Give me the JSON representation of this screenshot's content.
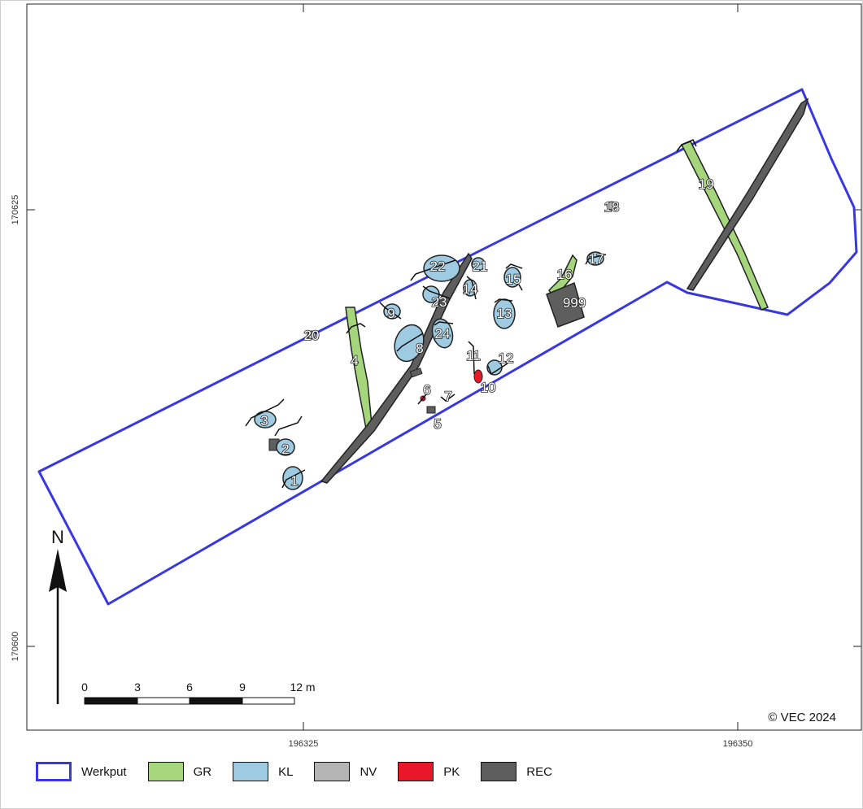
{
  "axes": {
    "x_ticks": [
      "196325",
      "196350"
    ],
    "y_ticks": [
      "170625",
      "170600"
    ]
  },
  "north_label": "N",
  "scale_bar": {
    "labels": [
      "0",
      "3",
      "6",
      "9",
      "12 m"
    ]
  },
  "copyright": "© VEC 2024",
  "legend": [
    {
      "label": "Werkput",
      "color": "#3838e0",
      "kind": "outline"
    },
    {
      "label": "GR",
      "color": "#a6d67c",
      "kind": "fill"
    },
    {
      "label": "KL",
      "color": "#9ecbe2",
      "kind": "fill"
    },
    {
      "label": "NV",
      "color": "#b4b4b4",
      "kind": "fill"
    },
    {
      "label": "PK",
      "color": "#e8182a",
      "kind": "fill"
    },
    {
      "label": "REC",
      "color": "#5e5e5e",
      "kind": "fill"
    }
  ],
  "features": [
    "1",
    "2",
    "3",
    "4",
    "5",
    "6",
    "7",
    "8",
    "9",
    "10",
    "11",
    "12",
    "13",
    "14",
    "15",
    "16",
    "17",
    "18",
    "19",
    "20",
    "21",
    "22",
    "23",
    "24",
    "999"
  ]
}
